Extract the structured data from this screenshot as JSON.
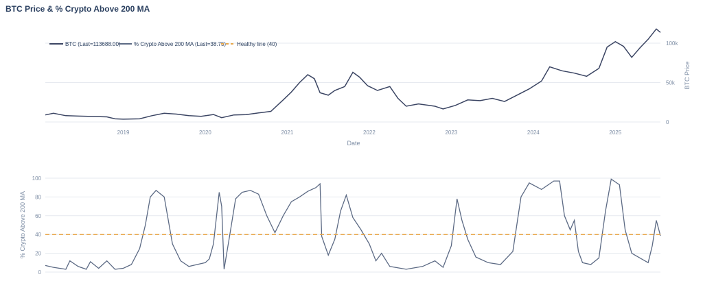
{
  "title": "BTC Price & % Crypto Above 200 MA",
  "colors": {
    "btc": "#3b4563",
    "pct": "#5c6a84",
    "healthy": "#e8a74a",
    "grid": "#e6e9ef",
    "text": "#7f8fa6"
  },
  "chart_data": [
    {
      "type": "line",
      "xlabel": "Date",
      "ylabel": "BTC Price",
      "y_side": "right",
      "ylim": [
        0,
        120000
      ],
      "y_ticks": [
        0,
        50000,
        100000
      ],
      "y_tick_labels": [
        "0",
        "50k",
        "100k"
      ],
      "x_range": [
        2018.05,
        2025.55
      ],
      "x_ticks": [
        2019,
        2020,
        2021,
        2022,
        2023,
        2024,
        2025
      ],
      "x_tick_labels": [
        "2019",
        "2020",
        "2021",
        "2022",
        "2023",
        "2024",
        "2025"
      ],
      "legend_position": "top-left",
      "series": [
        {
          "name": "BTC (Last=113688.00)",
          "color": "#3b4563",
          "points": [
            [
              2018.05,
              9000
            ],
            [
              2018.15,
              11000
            ],
            [
              2018.3,
              8000
            ],
            [
              2018.45,
              7500
            ],
            [
              2018.6,
              7000
            ],
            [
              2018.8,
              6500
            ],
            [
              2018.9,
              4000
            ],
            [
              2019.0,
              3600
            ],
            [
              2019.2,
              4000
            ],
            [
              2019.35,
              8000
            ],
            [
              2019.5,
              11000
            ],
            [
              2019.65,
              10000
            ],
            [
              2019.8,
              8000
            ],
            [
              2019.95,
              7200
            ],
            [
              2020.1,
              9500
            ],
            [
              2020.2,
              5500
            ],
            [
              2020.35,
              9000
            ],
            [
              2020.5,
              9300
            ],
            [
              2020.65,
              11500
            ],
            [
              2020.8,
              13500
            ],
            [
              2020.95,
              28000
            ],
            [
              2021.05,
              38000
            ],
            [
              2021.15,
              50000
            ],
            [
              2021.25,
              60000
            ],
            [
              2021.33,
              55000
            ],
            [
              2021.4,
              37000
            ],
            [
              2021.5,
              34000
            ],
            [
              2021.58,
              40000
            ],
            [
              2021.7,
              45000
            ],
            [
              2021.8,
              63000
            ],
            [
              2021.88,
              57000
            ],
            [
              2021.98,
              46000
            ],
            [
              2022.1,
              40000
            ],
            [
              2022.25,
              45000
            ],
            [
              2022.35,
              30000
            ],
            [
              2022.45,
              20000
            ],
            [
              2022.6,
              23000
            ],
            [
              2022.8,
              20000
            ],
            [
              2022.9,
              16500
            ],
            [
              2023.05,
              21000
            ],
            [
              2023.2,
              28000
            ],
            [
              2023.35,
              27000
            ],
            [
              2023.5,
              30000
            ],
            [
              2023.65,
              26000
            ],
            [
              2023.8,
              34000
            ],
            [
              2023.95,
              42000
            ],
            [
              2024.1,
              52000
            ],
            [
              2024.2,
              70000
            ],
            [
              2024.35,
              65000
            ],
            [
              2024.5,
              62000
            ],
            [
              2024.65,
              58000
            ],
            [
              2024.8,
              68000
            ],
            [
              2024.9,
              95000
            ],
            [
              2025.0,
              102000
            ],
            [
              2025.1,
              96000
            ],
            [
              2025.2,
              82000
            ],
            [
              2025.3,
              94000
            ],
            [
              2025.4,
              105000
            ],
            [
              2025.5,
              118000
            ],
            [
              2025.55,
              113688
            ]
          ]
        }
      ]
    },
    {
      "type": "line",
      "ylabel": "% Crypto Above 200 MA",
      "y_side": "left",
      "ylim": [
        0,
        100
      ],
      "y_ticks": [
        0,
        20,
        40,
        60,
        80,
        100
      ],
      "y_tick_labels": [
        "0",
        "20",
        "40",
        "60",
        "80",
        "100"
      ],
      "x_range": [
        2018.05,
        2025.55
      ],
      "series": [
        {
          "name": "% Crypto Above 200 MA (Last=38.75)",
          "color": "#5c6a84",
          "points": [
            [
              2018.05,
              7
            ],
            [
              2018.15,
              5
            ],
            [
              2018.3,
              3
            ],
            [
              2018.35,
              12
            ],
            [
              2018.45,
              6
            ],
            [
              2018.55,
              3
            ],
            [
              2018.6,
              11
            ],
            [
              2018.7,
              4
            ],
            [
              2018.8,
              12
            ],
            [
              2018.9,
              3
            ],
            [
              2019.0,
              4
            ],
            [
              2019.1,
              8
            ],
            [
              2019.2,
              25
            ],
            [
              2019.27,
              50
            ],
            [
              2019.33,
              80
            ],
            [
              2019.4,
              87
            ],
            [
              2019.5,
              80
            ],
            [
              2019.55,
              55
            ],
            [
              2019.6,
              30
            ],
            [
              2019.7,
              12
            ],
            [
              2019.8,
              6
            ],
            [
              2019.9,
              8
            ],
            [
              2020.0,
              10
            ],
            [
              2020.05,
              14
            ],
            [
              2020.1,
              30
            ],
            [
              2020.17,
              85
            ],
            [
              2020.2,
              70
            ],
            [
              2020.23,
              3
            ],
            [
              2020.3,
              40
            ],
            [
              2020.37,
              78
            ],
            [
              2020.45,
              85
            ],
            [
              2020.55,
              87
            ],
            [
              2020.65,
              83
            ],
            [
              2020.75,
              60
            ],
            [
              2020.85,
              42
            ],
            [
              2020.95,
              60
            ],
            [
              2021.05,
              75
            ],
            [
              2021.15,
              80
            ],
            [
              2021.25,
              86
            ],
            [
              2021.35,
              90
            ],
            [
              2021.4,
              94
            ],
            [
              2021.42,
              38
            ],
            [
              2021.5,
              18
            ],
            [
              2021.58,
              35
            ],
            [
              2021.65,
              65
            ],
            [
              2021.72,
              82
            ],
            [
              2021.8,
              58
            ],
            [
              2021.9,
              45
            ],
            [
              2022.0,
              30
            ],
            [
              2022.08,
              12
            ],
            [
              2022.15,
              20
            ],
            [
              2022.25,
              6
            ],
            [
              2022.45,
              3
            ],
            [
              2022.65,
              6
            ],
            [
              2022.8,
              12
            ],
            [
              2022.9,
              5
            ],
            [
              2023.0,
              28
            ],
            [
              2023.07,
              78
            ],
            [
              2023.13,
              55
            ],
            [
              2023.2,
              35
            ],
            [
              2023.3,
              16
            ],
            [
              2023.45,
              10
            ],
            [
              2023.6,
              8
            ],
            [
              2023.75,
              22
            ],
            [
              2023.85,
              80
            ],
            [
              2023.95,
              95
            ],
            [
              2024.1,
              88
            ],
            [
              2024.25,
              97
            ],
            [
              2024.32,
              97
            ],
            [
              2024.38,
              60
            ],
            [
              2024.45,
              45
            ],
            [
              2024.5,
              55
            ],
            [
              2024.55,
              22
            ],
            [
              2024.6,
              10
            ],
            [
              2024.7,
              8
            ],
            [
              2024.8,
              15
            ],
            [
              2024.88,
              65
            ],
            [
              2024.95,
              99
            ],
            [
              2025.05,
              93
            ],
            [
              2025.12,
              45
            ],
            [
              2025.2,
              20
            ],
            [
              2025.3,
              15
            ],
            [
              2025.4,
              10
            ],
            [
              2025.45,
              28
            ],
            [
              2025.5,
              55
            ],
            [
              2025.55,
              38.75
            ]
          ]
        },
        {
          "name": "Healthy line (40)",
          "color": "#e8a74a",
          "dash": true,
          "points": [
            [
              2018.05,
              40
            ],
            [
              2025.55,
              40
            ]
          ]
        }
      ]
    }
  ]
}
